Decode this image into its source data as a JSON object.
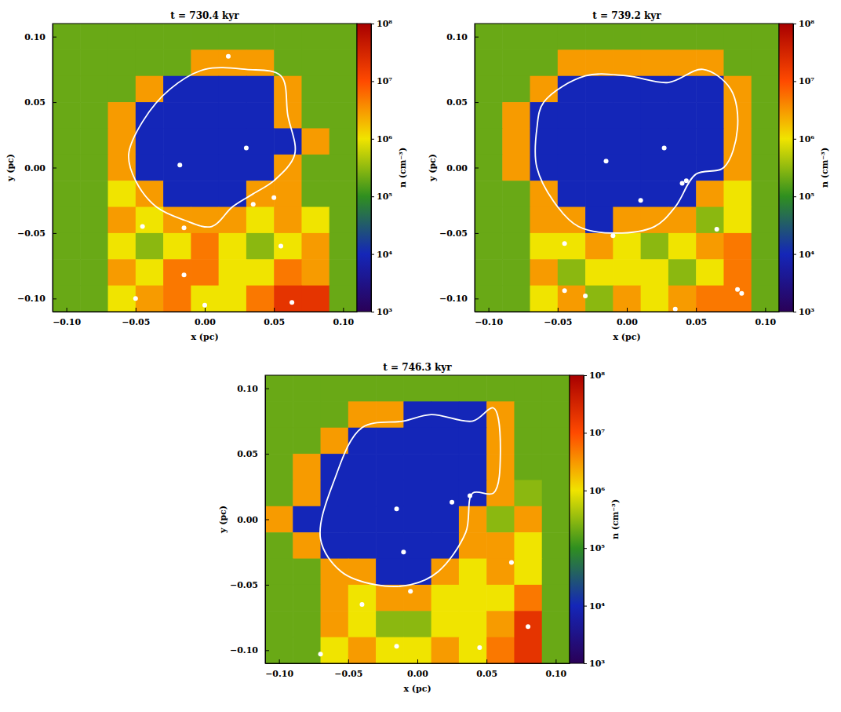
{
  "chart_data": [
    {
      "type": "heatmap",
      "title": "t = 730.4 kyr",
      "x_label": "x (pc)",
      "y_label": "y (pc)",
      "xlim": [
        -0.11,
        0.11
      ],
      "ylim": [
        -0.11,
        0.11
      ],
      "xticks": [
        {
          "value": -0.1,
          "label": "−0.10"
        },
        {
          "value": -0.05,
          "label": "−0.05"
        },
        {
          "value": 0,
          "label": "0.00"
        },
        {
          "value": 0.05,
          "label": "0.05"
        },
        {
          "value": 0.1,
          "label": "0.10"
        }
      ],
      "yticks": [
        {
          "value": -0.1,
          "label": "−0.10"
        },
        {
          "value": -0.05,
          "label": "−0.05"
        },
        {
          "value": 0,
          "label": "0.00"
        },
        {
          "value": 0.05,
          "label": "0.05"
        },
        {
          "value": 0.1,
          "label": "0.10"
        }
      ],
      "cell_x": [
        -0.1,
        -0.08,
        -0.06,
        -0.04,
        -0.02,
        0,
        0.02,
        0.04,
        0.06,
        0.08,
        0.1
      ],
      "cell_y": [
        0.1,
        0.08,
        0.06,
        0.04,
        0.02,
        0,
        -0.02,
        -0.04,
        -0.06,
        -0.08,
        -0.1
      ],
      "cells": [
        [
          200000.0,
          200000.0,
          200000.0,
          200000.0,
          200000.0,
          200000.0,
          200000.0,
          200000.0,
          200000.0,
          200000.0,
          200000.0
        ],
        [
          200000.0,
          200000.0,
          200000.0,
          200000.0,
          200000.0,
          3000000.0,
          3000000.0,
          3000000.0,
          200000.0,
          200000.0,
          200000.0
        ],
        [
          200000.0,
          200000.0,
          200000.0,
          3000000.0,
          10000.0,
          10000.0,
          10000.0,
          10000.0,
          3000000.0,
          200000.0,
          200000.0
        ],
        [
          200000.0,
          200000.0,
          3000000.0,
          10000.0,
          10000.0,
          10000.0,
          10000.0,
          10000.0,
          3000000.0,
          200000.0,
          200000.0
        ],
        [
          200000.0,
          200000.0,
          3000000.0,
          10000.0,
          10000.0,
          10000.0,
          10000.0,
          10000.0,
          10000.0,
          3000000.0,
          200000.0
        ],
        [
          200000.0,
          200000.0,
          3000000.0,
          10000.0,
          10000.0,
          10000.0,
          10000.0,
          10000.0,
          3000000.0,
          200000.0,
          200000.0
        ],
        [
          200000.0,
          200000.0,
          1000000.0,
          3000000.0,
          10000.0,
          10000.0,
          10000.0,
          3000000.0,
          3000000.0,
          200000.0,
          200000.0
        ],
        [
          200000.0,
          200000.0,
          3000000.0,
          1000000.0,
          3000000.0,
          3000000.0,
          3000000.0,
          1000000.0,
          3000000.0,
          1000000.0,
          200000.0
        ],
        [
          200000.0,
          200000.0,
          1000000.0,
          300000.0,
          1000000.0,
          5000000.0,
          1000000.0,
          300000.0,
          1000000.0,
          3000000.0,
          200000.0
        ],
        [
          200000.0,
          200000.0,
          3000000.0,
          1000000.0,
          5000000.0,
          5000000.0,
          1000000.0,
          1000000.0,
          5000000.0,
          3000000.0,
          200000.0
        ],
        [
          200000.0,
          200000.0,
          1000000.0,
          3000000.0,
          5000000.0,
          1000000.0,
          1000000.0,
          5000000.0,
          20000000.0,
          20000000.0,
          200000.0
        ]
      ],
      "colorbar": {
        "label": "n (cm⁻³)",
        "log": true,
        "range": [
          1000,
          100000000
        ],
        "ticks": [
          {
            "value": 1000,
            "label": "10³"
          },
          {
            "value": 10000,
            "label": "10⁴"
          },
          {
            "value": 100000,
            "label": "10⁵"
          },
          {
            "value": 1000000,
            "label": "10⁶"
          },
          {
            "value": 10000000,
            "label": "10⁷"
          },
          {
            "value": 100000000,
            "label": "10⁸"
          }
        ]
      },
      "contour": {
        "x": [
          -0.045,
          -0.025,
          0.0,
          0.03,
          0.055,
          0.06,
          0.065,
          0.05,
          0.035,
          0.02,
          0.005,
          -0.015,
          -0.035,
          -0.05,
          -0.055
        ],
        "y": [
          0.035,
          0.06,
          0.075,
          0.075,
          0.07,
          0.04,
          0.01,
          -0.01,
          -0.02,
          -0.03,
          -0.045,
          -0.04,
          -0.03,
          -0.01,
          0.01
        ]
      },
      "sinks": {
        "x": [
          0.017,
          -0.018,
          0.03,
          0.035,
          0.05,
          -0.045,
          -0.015,
          -0.015,
          0.055,
          -0.05,
          0.0,
          0.063
        ],
        "y": [
          0.085,
          0.002,
          0.015,
          -0.028,
          -0.023,
          -0.045,
          -0.046,
          -0.082,
          -0.06,
          -0.1,
          -0.105,
          -0.103
        ]
      }
    },
    {
      "type": "heatmap",
      "title": "t = 739.2 kyr",
      "x_label": "x (pc)",
      "y_label": "y (pc)",
      "xlim": [
        -0.11,
        0.11
      ],
      "ylim": [
        -0.11,
        0.11
      ],
      "xticks": [
        {
          "value": -0.1,
          "label": "−0.10"
        },
        {
          "value": -0.05,
          "label": "−0.05"
        },
        {
          "value": 0,
          "label": "0.00"
        },
        {
          "value": 0.05,
          "label": "0.05"
        },
        {
          "value": 0.1,
          "label": "0.10"
        }
      ],
      "yticks": [
        {
          "value": -0.1,
          "label": "−0.10"
        },
        {
          "value": -0.05,
          "label": "−0.05"
        },
        {
          "value": 0,
          "label": "0.00"
        },
        {
          "value": 0.05,
          "label": "0.05"
        },
        {
          "value": 0.1,
          "label": "0.10"
        }
      ],
      "cell_x": [
        -0.1,
        -0.08,
        -0.06,
        -0.04,
        -0.02,
        0,
        0.02,
        0.04,
        0.06,
        0.08,
        0.1
      ],
      "cell_y": [
        0.1,
        0.08,
        0.06,
        0.04,
        0.02,
        0,
        -0.02,
        -0.04,
        -0.06,
        -0.08,
        -0.1
      ],
      "cells": [
        [
          200000.0,
          200000.0,
          200000.0,
          200000.0,
          200000.0,
          200000.0,
          200000.0,
          200000.0,
          200000.0,
          200000.0,
          200000.0
        ],
        [
          200000.0,
          200000.0,
          200000.0,
          3000000.0,
          3000000.0,
          3000000.0,
          3000000.0,
          3000000.0,
          3000000.0,
          200000.0,
          200000.0
        ],
        [
          200000.0,
          200000.0,
          3000000.0,
          10000.0,
          10000.0,
          10000.0,
          10000.0,
          10000.0,
          10000.0,
          3000000.0,
          200000.0
        ],
        [
          200000.0,
          3000000.0,
          10000.0,
          10000.0,
          10000.0,
          10000.0,
          10000.0,
          10000.0,
          10000.0,
          3000000.0,
          200000.0
        ],
        [
          200000.0,
          3000000.0,
          10000.0,
          10000.0,
          10000.0,
          10000.0,
          10000.0,
          10000.0,
          10000.0,
          3000000.0,
          200000.0
        ],
        [
          200000.0,
          3000000.0,
          10000.0,
          10000.0,
          10000.0,
          10000.0,
          10000.0,
          10000.0,
          10000.0,
          3000000.0,
          200000.0
        ],
        [
          200000.0,
          200000.0,
          3000000.0,
          10000.0,
          10000.0,
          10000.0,
          10000.0,
          10000.0,
          3000000.0,
          1000000.0,
          200000.0
        ],
        [
          200000.0,
          200000.0,
          3000000.0,
          3000000.0,
          10000.0,
          3000000.0,
          3000000.0,
          3000000.0,
          300000.0,
          1000000.0,
          200000.0
        ],
        [
          200000.0,
          200000.0,
          1000000.0,
          1000000.0,
          3000000.0,
          1000000.0,
          300000.0,
          1000000.0,
          3000000.0,
          5000000.0,
          200000.0
        ],
        [
          200000.0,
          200000.0,
          3000000.0,
          300000.0,
          1000000.0,
          1000000.0,
          1000000.0,
          300000.0,
          1000000.0,
          5000000.0,
          200000.0
        ],
        [
          200000.0,
          200000.0,
          1000000.0,
          3000000.0,
          300000.0,
          3000000.0,
          1000000.0,
          3000000.0,
          5000000.0,
          5000000.0,
          200000.0
        ]
      ],
      "colorbar": {
        "label": "n (cm⁻³)",
        "log": true,
        "range": [
          1000,
          100000000
        ],
        "ticks": [
          {
            "value": 1000,
            "label": "10³"
          },
          {
            "value": 10000,
            "label": "10⁴"
          },
          {
            "value": 100000,
            "label": "10⁵"
          },
          {
            "value": 1000000,
            "label": "10⁶"
          },
          {
            "value": 10000000,
            "label": "10⁷"
          },
          {
            "value": 100000000,
            "label": "10⁸"
          }
        ]
      },
      "contour": {
        "x": [
          -0.06,
          -0.03,
          0.0,
          0.03,
          0.055,
          0.075,
          0.08,
          0.07,
          0.05,
          0.035,
          0.02,
          -0.01,
          -0.035,
          -0.05,
          -0.065,
          -0.065
        ],
        "y": [
          0.05,
          0.07,
          0.07,
          0.065,
          0.075,
          0.06,
          0.03,
          0.0,
          -0.005,
          -0.03,
          -0.045,
          -0.05,
          -0.045,
          -0.03,
          0.0,
          0.03
        ]
      },
      "sinks": {
        "x": [
          -0.015,
          0.027,
          0.01,
          0.04,
          0.043,
          -0.045,
          -0.01,
          0.065,
          -0.045,
          -0.03,
          0.035,
          0.08,
          0.083
        ],
        "y": [
          0.005,
          0.015,
          -0.025,
          -0.012,
          -0.01,
          -0.058,
          -0.052,
          -0.047,
          -0.094,
          -0.098,
          -0.108,
          -0.093,
          -0.096
        ]
      }
    },
    {
      "type": "heatmap",
      "title": "t = 746.3 kyr",
      "x_label": "x (pc)",
      "y_label": "y (pc)",
      "xlim": [
        -0.11,
        0.11
      ],
      "ylim": [
        -0.11,
        0.11
      ],
      "xticks": [
        {
          "value": -0.1,
          "label": "−0.10"
        },
        {
          "value": -0.05,
          "label": "−0.05"
        },
        {
          "value": 0,
          "label": "0.00"
        },
        {
          "value": 0.05,
          "label": "0.05"
        },
        {
          "value": 0.1,
          "label": "0.10"
        }
      ],
      "yticks": [
        {
          "value": -0.1,
          "label": "−0.10"
        },
        {
          "value": -0.05,
          "label": "−0.05"
        },
        {
          "value": 0,
          "label": "0.00"
        },
        {
          "value": 0.05,
          "label": "0.05"
        },
        {
          "value": 0.1,
          "label": "0.10"
        }
      ],
      "cell_x": [
        -0.1,
        -0.08,
        -0.06,
        -0.04,
        -0.02,
        0,
        0.02,
        0.04,
        0.06,
        0.08,
        0.1
      ],
      "cell_y": [
        0.1,
        0.08,
        0.06,
        0.04,
        0.02,
        0,
        -0.02,
        -0.04,
        -0.06,
        -0.08,
        -0.1
      ],
      "cells": [
        [
          200000.0,
          200000.0,
          200000.0,
          200000.0,
          200000.0,
          200000.0,
          200000.0,
          200000.0,
          200000.0,
          200000.0,
          200000.0
        ],
        [
          200000.0,
          200000.0,
          200000.0,
          3000000.0,
          3000000.0,
          10000.0,
          10000.0,
          10000.0,
          3000000.0,
          200000.0,
          200000.0
        ],
        [
          200000.0,
          200000.0,
          3000000.0,
          10000.0,
          10000.0,
          10000.0,
          10000.0,
          10000.0,
          3000000.0,
          200000.0,
          200000.0
        ],
        [
          200000.0,
          3000000.0,
          10000.0,
          10000.0,
          10000.0,
          10000.0,
          10000.0,
          10000.0,
          3000000.0,
          200000.0,
          200000.0
        ],
        [
          200000.0,
          3000000.0,
          10000.0,
          10000.0,
          10000.0,
          10000.0,
          10000.0,
          10000.0,
          3000000.0,
          300000.0,
          200000.0
        ],
        [
          3000000.0,
          10000.0,
          10000.0,
          10000.0,
          10000.0,
          10000.0,
          10000.0,
          3000000.0,
          300000.0,
          3000000.0,
          200000.0
        ],
        [
          200000.0,
          3000000.0,
          10000.0,
          10000.0,
          10000.0,
          10000.0,
          10000.0,
          3000000.0,
          3000000.0,
          1000000.0,
          200000.0
        ],
        [
          200000.0,
          200000.0,
          3000000.0,
          3000000.0,
          10000.0,
          10000.0,
          3000000.0,
          1000000.0,
          3000000.0,
          1000000.0,
          200000.0
        ],
        [
          200000.0,
          200000.0,
          3000000.0,
          1000000.0,
          3000000.0,
          3000000.0,
          1000000.0,
          1000000.0,
          1000000.0,
          5000000.0,
          200000.0
        ],
        [
          200000.0,
          200000.0,
          3000000.0,
          1000000.0,
          300000.0,
          300000.0,
          1000000.0,
          1000000.0,
          3000000.0,
          20000000.0,
          200000.0
        ],
        [
          200000.0,
          200000.0,
          1000000.0,
          3000000.0,
          1000000.0,
          1000000.0,
          3000000.0,
          1000000.0,
          5000000.0,
          20000000.0,
          200000.0
        ]
      ],
      "colorbar": {
        "label": "n (cm⁻³)",
        "log": true,
        "range": [
          1000,
          100000000
        ],
        "ticks": [
          {
            "value": 1000,
            "label": "10³"
          },
          {
            "value": 10000,
            "label": "10⁴"
          },
          {
            "value": 100000,
            "label": "10⁵"
          },
          {
            "value": 1000000,
            "label": "10⁶"
          },
          {
            "value": 10000000,
            "label": "10⁷"
          },
          {
            "value": 100000000,
            "label": "10⁸"
          }
        ]
      },
      "contour": {
        "x": [
          -0.07,
          -0.06,
          -0.04,
          -0.01,
          0.01,
          0.04,
          0.055,
          0.06,
          0.055,
          0.04,
          0.035,
          0.015,
          -0.005,
          -0.03,
          -0.055
        ],
        "y": [
          -0.015,
          0.03,
          0.07,
          0.075,
          0.08,
          0.075,
          0.085,
          0.05,
          0.02,
          0.02,
          -0.01,
          -0.04,
          -0.05,
          -0.05,
          -0.04
        ]
      },
      "sinks": {
        "x": [
          -0.015,
          0.025,
          0.038,
          -0.01,
          -0.005,
          -0.04,
          0.068,
          -0.015,
          0.045,
          0.08,
          -0.07
        ],
        "y": [
          0.008,
          0.013,
          0.018,
          -0.025,
          -0.055,
          -0.065,
          -0.033,
          -0.097,
          -0.098,
          -0.082,
          -0.103
        ]
      }
    }
  ]
}
